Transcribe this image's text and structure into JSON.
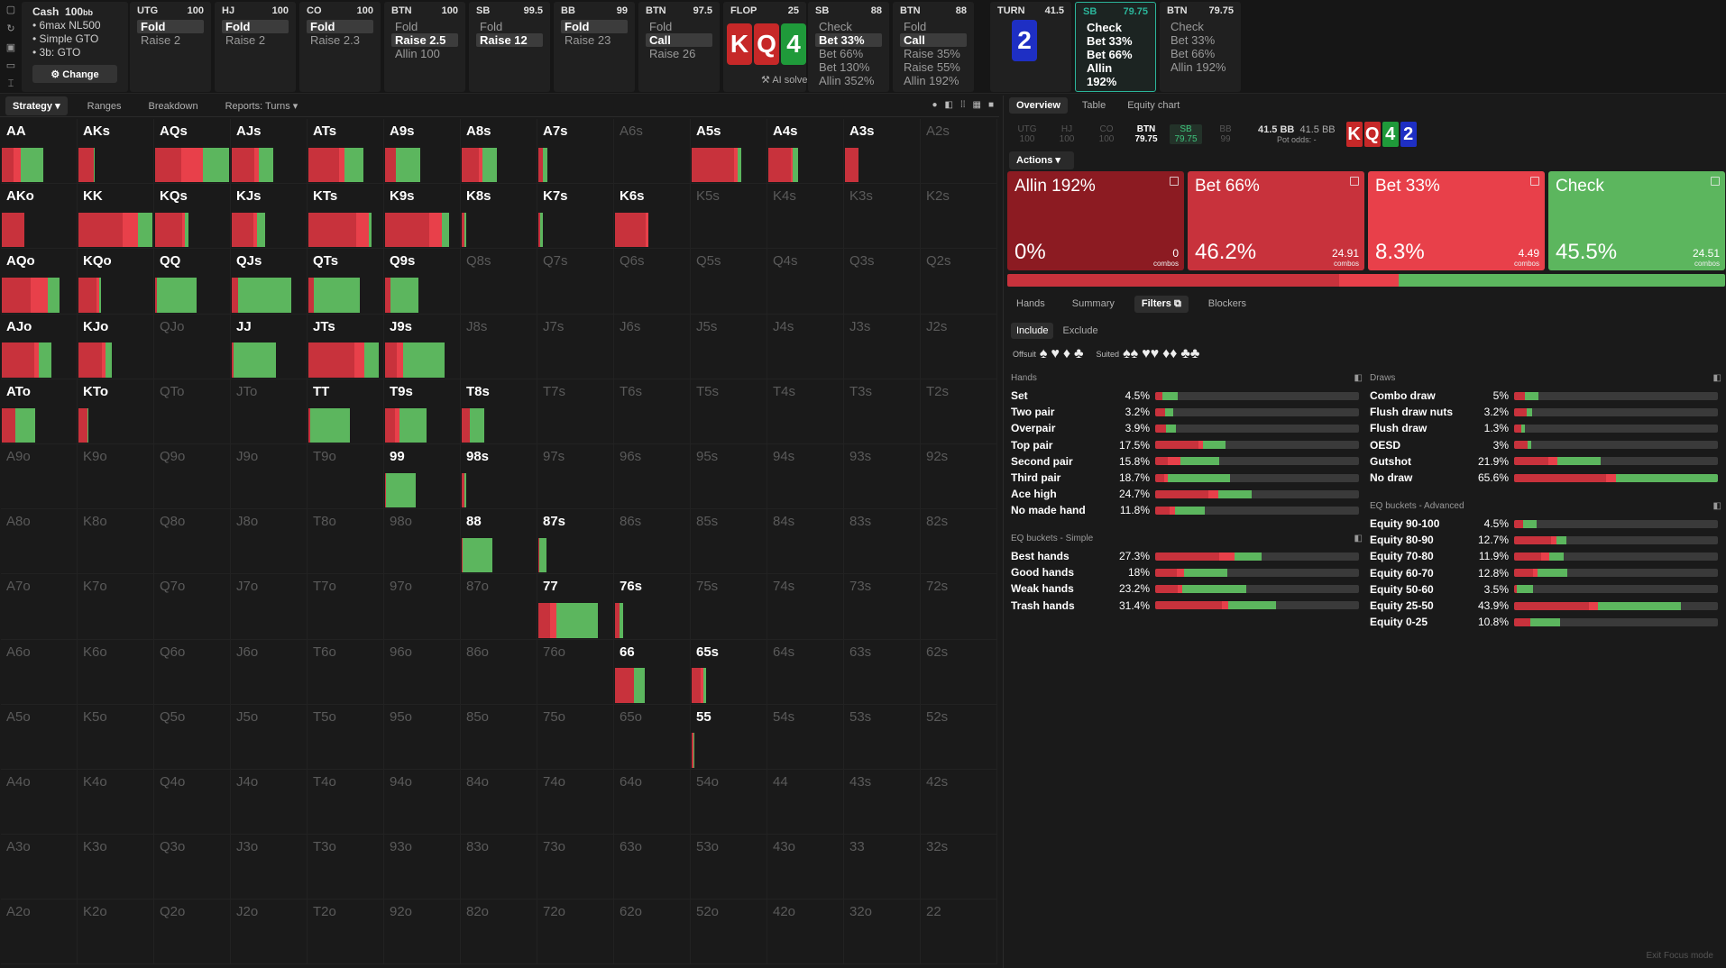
{
  "colors": {
    "allin": "#8c1b22",
    "bet66": "#c8323c",
    "bet33": "#e8404a",
    "check": "#5cb65e",
    "fold": "#3a3a3a"
  },
  "cash": {
    "title": "Cash",
    "stack": "100",
    "unit": "bb",
    "items": [
      "6max NL500",
      "Simple GTO",
      "3b: GTO"
    ],
    "change_label": "Change"
  },
  "nav": [
    {
      "pos": "UTG",
      "stack": "100",
      "options": [
        "Fold",
        "Raise 2"
      ],
      "sel": 0
    },
    {
      "pos": "HJ",
      "stack": "100",
      "options": [
        "Fold",
        "Raise 2"
      ],
      "sel": 0
    },
    {
      "pos": "CO",
      "stack": "100",
      "options": [
        "Fold",
        "Raise 2.3"
      ],
      "sel": 0
    },
    {
      "pos": "BTN",
      "stack": "100",
      "options": [
        "Fold",
        "Raise 2.5",
        "Allin 100"
      ],
      "sel": 1
    },
    {
      "pos": "SB",
      "stack": "99.5",
      "options": [
        "Fold",
        "Raise 12"
      ],
      "sel": 1
    },
    {
      "pos": "BB",
      "stack": "99",
      "options": [
        "Fold",
        "Raise 23"
      ],
      "sel": 0
    },
    {
      "pos": "BTN",
      "stack": "97.5",
      "options": [
        "Fold",
        "Call",
        "Raise 26"
      ],
      "sel": 1
    },
    {
      "pos": "SB",
      "stack": "88",
      "options": [
        "Check",
        "Bet 33%",
        "Bet 66%",
        "Bet 130%",
        "Allin 352%"
      ],
      "sel": 1
    },
    {
      "pos": "BTN",
      "stack": "88",
      "options": [
        "Fold",
        "Call",
        "Raise 35%",
        "Raise 55%",
        "Allin 192%"
      ],
      "sel": 1
    },
    {
      "pos": "SB",
      "stack": "79.75",
      "options": [
        "Check",
        "Bet 33%",
        "Bet 66%",
        "Allin 192%"
      ],
      "sel": -1,
      "active": true
    },
    {
      "pos": "BTN",
      "stack": "79.75",
      "options": [
        "Check",
        "Bet 33%",
        "Bet 66%",
        "Allin 192%"
      ],
      "sel": -1
    }
  ],
  "flop": {
    "label": "FLOP",
    "pot": "25",
    "cards": [
      {
        "r": "K",
        "c": "#c62828"
      },
      {
        "r": "Q",
        "c": "#c62828"
      },
      {
        "r": "4",
        "c": "#1f9a3a"
      }
    ],
    "ai": "AI solve"
  },
  "turn": {
    "label": "TURN",
    "pot": "41.5",
    "card": {
      "r": "2",
      "c": "#1e2fc4"
    }
  },
  "left_tabs": [
    "Strategy",
    "Ranges",
    "Breakdown",
    "Reports: Turns"
  ],
  "right_tabs": [
    "Overview",
    "Table",
    "Equity chart"
  ],
  "seats": [
    {
      "p": "UTG",
      "s": "100"
    },
    {
      "p": "HJ",
      "s": "100"
    },
    {
      "p": "CO",
      "s": "100"
    },
    {
      "p": "BTN",
      "s": "79.75"
    },
    {
      "p": "SB",
      "s": "79.75"
    },
    {
      "p": "BB",
      "s": "99"
    }
  ],
  "pot": {
    "main": "41.5 BB",
    "side": "41.5 BB",
    "odds": "Pot odds: -"
  },
  "board": [
    {
      "r": "K",
      "c": "#c62828"
    },
    {
      "r": "Q",
      "c": "#c62828"
    },
    {
      "r": "4",
      "c": "#1f9a3a"
    },
    {
      "r": "2",
      "c": "#1e2fc4"
    }
  ],
  "actions_label": "Actions",
  "actions": [
    {
      "name": "Allin 192%",
      "pct": "0%",
      "combos": "0",
      "k": "allin"
    },
    {
      "name": "Bet 66%",
      "pct": "46.2%",
      "combos": "24.91",
      "k": "bet66"
    },
    {
      "name": "Bet 33%",
      "pct": "8.3%",
      "combos": "4.49",
      "k": "bet33"
    },
    {
      "name": "Check",
      "pct": "45.5%",
      "combos": "24.51",
      "k": "check"
    }
  ],
  "combos_word": "combos",
  "freq": [
    0,
    46.2,
    8.3,
    45.5
  ],
  "sub_tabs": [
    "Hands",
    "Summary",
    "Filters",
    "Blockers"
  ],
  "include": [
    "Include",
    "Exclude"
  ],
  "suit_labels": {
    "offsuit": "Offsuit",
    "suited": "Suited"
  },
  "hands_title": "Hands",
  "hands": [
    {
      "n": "Set",
      "p": "4.5%",
      "w": 4.5,
      "s": [
        0.3,
        0.7
      ]
    },
    {
      "n": "Two pair",
      "p": "3.2%",
      "w": 3.2,
      "s": [
        0.55,
        0.45
      ]
    },
    {
      "n": "Overpair",
      "p": "3.9%",
      "w": 3.9,
      "s": [
        0.55,
        0.45
      ]
    },
    {
      "n": "Top pair",
      "p": "17.5%",
      "w": 17.5,
      "s": [
        0.62,
        0.06,
        0.32
      ]
    },
    {
      "n": "Second pair",
      "p": "15.8%",
      "w": 15.8,
      "s": [
        0.2,
        0.2,
        0.6
      ]
    },
    {
      "n": "Third pair",
      "p": "18.7%",
      "w": 18.7,
      "s": [
        0.12,
        0.05,
        0.83
      ]
    },
    {
      "n": "Ace high",
      "p": "24.7%",
      "w": 24.7,
      "s": [
        0.55,
        0.1,
        0.35
      ]
    },
    {
      "n": "No made hand",
      "p": "11.8%",
      "w": 11.8,
      "s": [
        0.3,
        0.1,
        0.6
      ]
    }
  ],
  "eq_simple_title": "EQ buckets - Simple",
  "eq_simple": [
    {
      "n": "Best hands",
      "p": "27.3%",
      "w": 27.3,
      "s": [
        0.6,
        0.15,
        0.25
      ]
    },
    {
      "n": "Good hands",
      "p": "18%",
      "w": 18,
      "s": [
        0.3,
        0.1,
        0.6
      ]
    },
    {
      "n": "Weak hands",
      "p": "23.2%",
      "w": 23.2,
      "s": [
        0.25,
        0.05,
        0.7
      ]
    },
    {
      "n": "Trash hands",
      "p": "31.4%",
      "w": 31.4,
      "s": [
        0.55,
        0.05,
        0.4
      ]
    }
  ],
  "draws_title": "Draws",
  "draws": [
    {
      "n": "Combo draw",
      "p": "5%",
      "w": 5,
      "s": [
        0.45,
        0.55
      ]
    },
    {
      "n": "Flush draw nuts",
      "p": "3.2%",
      "w": 3.2,
      "s": [
        0.7,
        0.3
      ]
    },
    {
      "n": "Flush draw",
      "p": "1.3%",
      "w": 1.3,
      "s": [
        0.7,
        0.3
      ]
    },
    {
      "n": "OESD",
      "p": "3%",
      "w": 3,
      "s": [
        0.8,
        0.2
      ]
    },
    {
      "n": "Gutshot",
      "p": "21.9%",
      "w": 21.9,
      "s": [
        0.4,
        0.1,
        0.5
      ]
    },
    {
      "n": "No draw",
      "p": "65.6%",
      "w": 65.6,
      "s": [
        0.45,
        0.05,
        0.5
      ]
    }
  ],
  "eq_adv_title": "EQ buckets - Advanced",
  "eq_adv": [
    {
      "n": "Equity 90-100",
      "p": "4.5%",
      "w": 4.5,
      "s": [
        0.4,
        0.6
      ]
    },
    {
      "n": "Equity 80-90",
      "p": "12.7%",
      "w": 12.7,
      "s": [
        0.7,
        0.1,
        0.2
      ]
    },
    {
      "n": "Equity 70-80",
      "p": "11.9%",
      "w": 11.9,
      "s": [
        0.55,
        0.15,
        0.3
      ]
    },
    {
      "n": "Equity 60-70",
      "p": "12.8%",
      "w": 12.8,
      "s": [
        0.35,
        0.1,
        0.55
      ]
    },
    {
      "n": "Equity 50-60",
      "p": "3.5%",
      "w": 3.5,
      "s": [
        0.15,
        0.85
      ]
    },
    {
      "n": "Equity 25-50",
      "p": "43.9%",
      "w": 43.9,
      "s": [
        0.45,
        0.05,
        0.5
      ]
    },
    {
      "n": "Equity 0-25",
      "p": "10.8%",
      "w": 10.8,
      "s": [
        0.35,
        0.65
      ]
    }
  ],
  "exit_focus": "Exit Focus mode",
  "grid": [
    {
      "h": "AA",
      "m": [
        [
          0.56,
          0,
          0.34,
          0.24,
          0.66
        ]
      ]
    },
    {
      "h": "AKs",
      "m": [
        [
          0.22,
          0,
          0.95,
          0,
          0.05
        ]
      ]
    },
    {
      "h": "AQs",
      "m": [
        [
          1,
          0,
          0.35,
          0.3,
          0.35
        ]
      ]
    },
    {
      "h": "AJs",
      "m": [
        [
          0.56,
          0,
          0.55,
          0.1,
          0.35
        ]
      ]
    },
    {
      "h": "ATs",
      "m": [
        [
          0.75,
          0,
          0.55,
          0.1,
          0.35
        ]
      ]
    },
    {
      "h": "A9s",
      "m": [
        [
          0.47,
          0,
          0.3,
          0,
          0.7
        ]
      ]
    },
    {
      "h": "A8s",
      "m": [
        [
          0.47,
          0,
          0.5,
          0.1,
          0.4
        ]
      ]
    },
    {
      "h": "A7s",
      "m": [
        [
          0.12,
          0,
          0.5,
          0,
          0.5
        ]
      ]
    },
    {
      "h": "A6s",
      "m": []
    },
    {
      "h": "A5s",
      "m": [
        [
          0.67,
          0,
          0.85,
          0.07,
          0.08
        ]
      ]
    },
    {
      "h": "A4s",
      "m": [
        [
          0.4,
          0,
          0.75,
          0.07,
          0.18
        ]
      ]
    },
    {
      "h": "A3s",
      "m": [
        [
          0.18,
          0,
          1,
          0,
          0
        ]
      ]
    },
    {
      "h": "A2s",
      "m": []
    },
    {
      "h": "AKo",
      "m": [
        [
          0.31,
          0,
          1,
          0,
          0
        ]
      ]
    },
    {
      "h": "KK",
      "m": [
        [
          1,
          0,
          0.6,
          0.2,
          0.2
        ]
      ]
    },
    {
      "h": "KQs",
      "m": [
        [
          0.45,
          0,
          0.8,
          0.1,
          0.1
        ]
      ]
    },
    {
      "h": "KJs",
      "m": [
        [
          0.45,
          0,
          0.65,
          0.1,
          0.25
        ]
      ]
    },
    {
      "h": "KTs",
      "m": [
        [
          0.86,
          0,
          0.75,
          0.2,
          0.05
        ]
      ]
    },
    {
      "h": "K9s",
      "m": [
        [
          0.86,
          0,
          0.7,
          0.2,
          0.1
        ]
      ]
    },
    {
      "h": "K8s",
      "m": [
        [
          0.06,
          0,
          0.6,
          0,
          0.4
        ]
      ]
    },
    {
      "h": "K7s",
      "m": [
        [
          0.06,
          0,
          0.5,
          0,
          0.5
        ]
      ]
    },
    {
      "h": "K6s",
      "m": [
        [
          0.45,
          0,
          0.92,
          0.08,
          0
        ]
      ]
    },
    {
      "h": "K5s",
      "m": []
    },
    {
      "h": "K4s",
      "m": []
    },
    {
      "h": "K3s",
      "m": []
    },
    {
      "h": "K2s",
      "m": []
    },
    {
      "h": "AQo",
      "m": [
        [
          0.78,
          0,
          0.5,
          0.3,
          0.2
        ]
      ]
    },
    {
      "h": "KQo",
      "m": [
        [
          0.31,
          0,
          0.8,
          0.1,
          0.1
        ]
      ]
    },
    {
      "h": "QQ",
      "m": [
        [
          0.56,
          0,
          0.05,
          0,
          0.95
        ]
      ]
    },
    {
      "h": "QJs",
      "m": [
        [
          0.8,
          0,
          0.1,
          0,
          0.9
        ]
      ]
    },
    {
      "h": "QTs",
      "m": [
        [
          0.69,
          0,
          0.1,
          0,
          0.9
        ]
      ]
    },
    {
      "h": "Q9s",
      "m": [
        [
          0.45,
          0,
          0.15,
          0,
          0.85
        ]
      ]
    },
    {
      "h": "Q8s",
      "m": []
    },
    {
      "h": "Q7s",
      "m": []
    },
    {
      "h": "Q6s",
      "m": []
    },
    {
      "h": "Q5s",
      "m": []
    },
    {
      "h": "Q4s",
      "m": []
    },
    {
      "h": "Q3s",
      "m": []
    },
    {
      "h": "Q2s",
      "m": []
    },
    {
      "h": "AJo",
      "m": [
        [
          0.67,
          0,
          0.65,
          0.1,
          0.25
        ]
      ]
    },
    {
      "h": "KJo",
      "m": [
        [
          0.45,
          0,
          0.7,
          0.1,
          0.2
        ]
      ]
    },
    {
      "h": "QJo",
      "m": []
    },
    {
      "h": "JJ",
      "m": [
        [
          0.6,
          0,
          0.05,
          0,
          0.95
        ]
      ]
    },
    {
      "h": "JTs",
      "m": [
        [
          0.95,
          0,
          0.65,
          0.15,
          0.2
        ]
      ]
    },
    {
      "h": "J9s",
      "m": [
        [
          0.8,
          0,
          0.2,
          0.1,
          0.7
        ]
      ]
    },
    {
      "h": "J8s",
      "m": []
    },
    {
      "h": "J7s",
      "m": []
    },
    {
      "h": "J6s",
      "m": []
    },
    {
      "h": "J5s",
      "m": []
    },
    {
      "h": "J4s",
      "m": []
    },
    {
      "h": "J3s",
      "m": []
    },
    {
      "h": "J2s",
      "m": []
    },
    {
      "h": "ATo",
      "m": [
        [
          0.45,
          0,
          0.4,
          0,
          0.6
        ]
      ]
    },
    {
      "h": "KTo",
      "m": [
        [
          0.14,
          0,
          0.9,
          0,
          0.1
        ]
      ]
    },
    {
      "h": "QTo",
      "m": []
    },
    {
      "h": "JTo",
      "m": []
    },
    {
      "h": "TT",
      "m": [
        [
          0.56,
          0,
          0.05,
          0,
          0.95
        ]
      ]
    },
    {
      "h": "T9s",
      "m": [
        [
          0.56,
          0,
          0.25,
          0.1,
          0.65
        ]
      ]
    },
    {
      "h": "T8s",
      "m": [
        [
          0.31,
          0,
          0.35,
          0,
          0.65
        ]
      ]
    },
    {
      "h": "T7s",
      "m": []
    },
    {
      "h": "T6s",
      "m": []
    },
    {
      "h": "T5s",
      "m": []
    },
    {
      "h": "T4s",
      "m": []
    },
    {
      "h": "T3s",
      "m": []
    },
    {
      "h": "T2s",
      "m": []
    },
    {
      "h": "A9o",
      "m": []
    },
    {
      "h": "K9o",
      "m": []
    },
    {
      "h": "Q9o",
      "m": []
    },
    {
      "h": "J9o",
      "m": []
    },
    {
      "h": "T9o",
      "m": []
    },
    {
      "h": "99",
      "m": [
        [
          0.42,
          0,
          0.03,
          0,
          0.97
        ]
      ]
    },
    {
      "h": "98s",
      "m": [
        [
          0.06,
          0,
          0.6,
          0.1,
          0.3
        ]
      ]
    },
    {
      "h": "97s",
      "m": []
    },
    {
      "h": "96s",
      "m": []
    },
    {
      "h": "95s",
      "m": []
    },
    {
      "h": "94s",
      "m": []
    },
    {
      "h": "93s",
      "m": []
    },
    {
      "h": "92s",
      "m": []
    },
    {
      "h": "A8o",
      "m": []
    },
    {
      "h": "K8o",
      "m": []
    },
    {
      "h": "Q8o",
      "m": []
    },
    {
      "h": "J8o",
      "m": []
    },
    {
      "h": "T8o",
      "m": []
    },
    {
      "h": "98o",
      "m": []
    },
    {
      "h": "88",
      "m": [
        [
          0.42,
          0,
          0.03,
          0,
          0.97
        ]
      ]
    },
    {
      "h": "87s",
      "m": [
        [
          0.11,
          0,
          0.1,
          0,
          0.9
        ]
      ]
    },
    {
      "h": "86s",
      "m": []
    },
    {
      "h": "85s",
      "m": []
    },
    {
      "h": "84s",
      "m": []
    },
    {
      "h": "83s",
      "m": []
    },
    {
      "h": "82s",
      "m": []
    },
    {
      "h": "A7o",
      "m": []
    },
    {
      "h": "K7o",
      "m": []
    },
    {
      "h": "Q7o",
      "m": []
    },
    {
      "h": "J7o",
      "m": []
    },
    {
      "h": "T7o",
      "m": []
    },
    {
      "h": "97o",
      "m": []
    },
    {
      "h": "87o",
      "m": []
    },
    {
      "h": "77",
      "m": [
        [
          0.8,
          0,
          0.2,
          0.1,
          0.7
        ]
      ]
    },
    {
      "h": "76s",
      "m": [
        [
          0.11,
          0,
          0.55,
          0,
          0.45
        ]
      ]
    },
    {
      "h": "75s",
      "m": []
    },
    {
      "h": "74s",
      "m": []
    },
    {
      "h": "73s",
      "m": []
    },
    {
      "h": "72s",
      "m": []
    },
    {
      "h": "A6o",
      "m": []
    },
    {
      "h": "K6o",
      "m": []
    },
    {
      "h": "Q6o",
      "m": []
    },
    {
      "h": "J6o",
      "m": []
    },
    {
      "h": "T6o",
      "m": []
    },
    {
      "h": "96o",
      "m": []
    },
    {
      "h": "86o",
      "m": []
    },
    {
      "h": "76o",
      "m": []
    },
    {
      "h": "66",
      "m": [
        [
          0.4,
          0,
          0.65,
          0,
          0.35
        ]
      ]
    },
    {
      "h": "65s",
      "m": [
        [
          0.2,
          0,
          0.6,
          0.2,
          0.2
        ]
      ]
    },
    {
      "h": "64s",
      "m": []
    },
    {
      "h": "63s",
      "m": []
    },
    {
      "h": "62s",
      "m": []
    },
    {
      "h": "A5o",
      "m": []
    },
    {
      "h": "K5o",
      "m": []
    },
    {
      "h": "Q5o",
      "m": []
    },
    {
      "h": "J5o",
      "m": []
    },
    {
      "h": "T5o",
      "m": []
    },
    {
      "h": "95o",
      "m": []
    },
    {
      "h": "85o",
      "m": []
    },
    {
      "h": "75o",
      "m": []
    },
    {
      "h": "65o",
      "m": []
    },
    {
      "h": "55",
      "m": [
        [
          0.04,
          0,
          0.5,
          0,
          0.5
        ]
      ]
    },
    {
      "h": "54s",
      "m": []
    },
    {
      "h": "53s",
      "m": []
    },
    {
      "h": "52s",
      "m": []
    },
    {
      "h": "A4o",
      "m": []
    },
    {
      "h": "K4o",
      "m": []
    },
    {
      "h": "Q4o",
      "m": []
    },
    {
      "h": "J4o",
      "m": []
    },
    {
      "h": "T4o",
      "m": []
    },
    {
      "h": "94o",
      "m": []
    },
    {
      "h": "84o",
      "m": []
    },
    {
      "h": "74o",
      "m": []
    },
    {
      "h": "64o",
      "m": []
    },
    {
      "h": "54o",
      "m": []
    },
    {
      "h": "44",
      "m": []
    },
    {
      "h": "43s",
      "m": []
    },
    {
      "h": "42s",
      "m": []
    },
    {
      "h": "A3o",
      "m": []
    },
    {
      "h": "K3o",
      "m": []
    },
    {
      "h": "Q3o",
      "m": []
    },
    {
      "h": "J3o",
      "m": []
    },
    {
      "h": "T3o",
      "m": []
    },
    {
      "h": "93o",
      "m": []
    },
    {
      "h": "83o",
      "m": []
    },
    {
      "h": "73o",
      "m": []
    },
    {
      "h": "63o",
      "m": []
    },
    {
      "h": "53o",
      "m": []
    },
    {
      "h": "43o",
      "m": []
    },
    {
      "h": "33",
      "m": []
    },
    {
      "h": "32s",
      "m": []
    },
    {
      "h": "A2o",
      "m": []
    },
    {
      "h": "K2o",
      "m": []
    },
    {
      "h": "Q2o",
      "m": []
    },
    {
      "h": "J2o",
      "m": []
    },
    {
      "h": "T2o",
      "m": []
    },
    {
      "h": "92o",
      "m": []
    },
    {
      "h": "82o",
      "m": []
    },
    {
      "h": "72o",
      "m": []
    },
    {
      "h": "62o",
      "m": []
    },
    {
      "h": "52o",
      "m": []
    },
    {
      "h": "42o",
      "m": []
    },
    {
      "h": "32o",
      "m": []
    },
    {
      "h": "22",
      "m": []
    }
  ]
}
